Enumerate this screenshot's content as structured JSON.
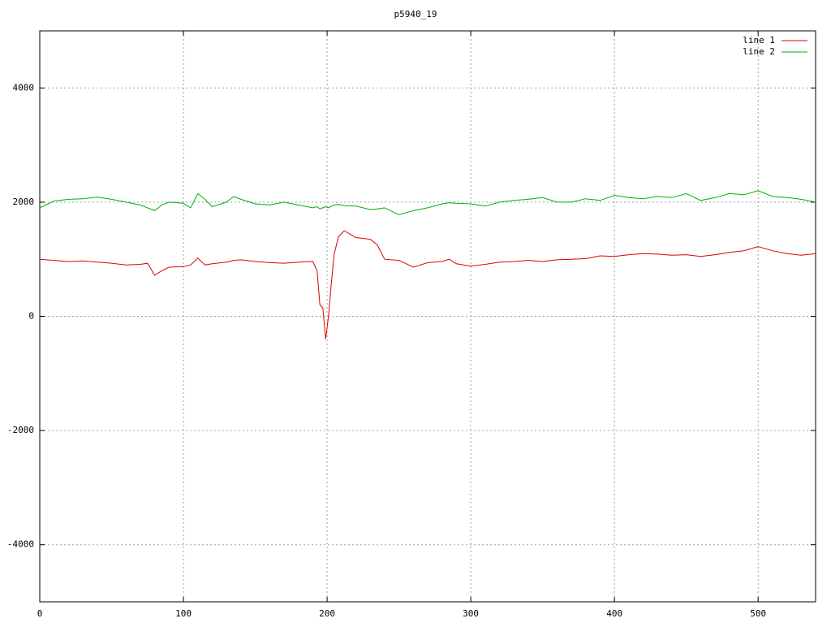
{
  "chart_data": {
    "type": "line",
    "title": "p5940_19",
    "x": [
      0,
      10,
      20,
      30,
      40,
      50,
      60,
      70,
      75,
      80,
      85,
      90,
      100,
      105,
      110,
      115,
      120,
      130,
      135,
      140,
      150,
      160,
      170,
      180,
      190,
      193,
      195,
      197,
      199,
      201,
      203,
      205,
      208,
      210,
      212,
      220,
      230,
      235,
      240,
      250,
      260,
      270,
      280,
      285,
      290,
      300,
      310,
      320,
      330,
      340,
      350,
      360,
      370,
      380,
      390,
      400,
      410,
      420,
      430,
      440,
      450,
      460,
      470,
      480,
      490,
      500,
      510,
      520,
      530,
      540
    ],
    "series": [
      {
        "name": "line 1",
        "color": "#e00000",
        "values": [
          1000,
          980,
          960,
          970,
          950,
          930,
          900,
          910,
          930,
          720,
          800,
          860,
          870,
          900,
          1020,
          900,
          920,
          950,
          980,
          990,
          960,
          940,
          930,
          950,
          960,
          800,
          200,
          150,
          -400,
          0,
          600,
          1100,
          1400,
          1450,
          1500,
          1380,
          1350,
          1250,
          1000,
          980,
          860,
          940,
          960,
          1000,
          920,
          880,
          910,
          950,
          960,
          980,
          960,
          990,
          1000,
          1010,
          1060,
          1050,
          1080,
          1100,
          1090,
          1070,
          1080,
          1050,
          1080,
          1120,
          1150,
          1220,
          1150,
          1100,
          1070,
          1100
        ]
      },
      {
        "name": "line 2",
        "color": "#00b000",
        "values": [
          1900,
          2020,
          2050,
          2060,
          2090,
          2050,
          2000,
          1950,
          1900,
          1850,
          1950,
          2000,
          1980,
          1900,
          2150,
          2050,
          1920,
          2000,
          2100,
          2050,
          1970,
          1950,
          2000,
          1950,
          1900,
          1920,
          1880,
          1900,
          1920,
          1900,
          1930,
          1950,
          1960,
          1950,
          1940,
          1930,
          1870,
          1880,
          1900,
          1780,
          1850,
          1900,
          1970,
          1990,
          1980,
          1970,
          1930,
          2000,
          2030,
          2050,
          2080,
          2000,
          2000,
          2060,
          2030,
          2120,
          2080,
          2060,
          2100,
          2080,
          2150,
          2030,
          2080,
          2150,
          2130,
          2200,
          2100,
          2080,
          2050,
          2000
        ]
      }
    ],
    "xlim": [
      0,
      540
    ],
    "xticks": [
      0,
      100,
      200,
      300,
      400,
      500
    ],
    "ylim": [
      -5000,
      5000
    ],
    "yticks": [
      -4000,
      -2000,
      0,
      2000,
      4000
    ],
    "grid": true,
    "legend": "top-right"
  }
}
